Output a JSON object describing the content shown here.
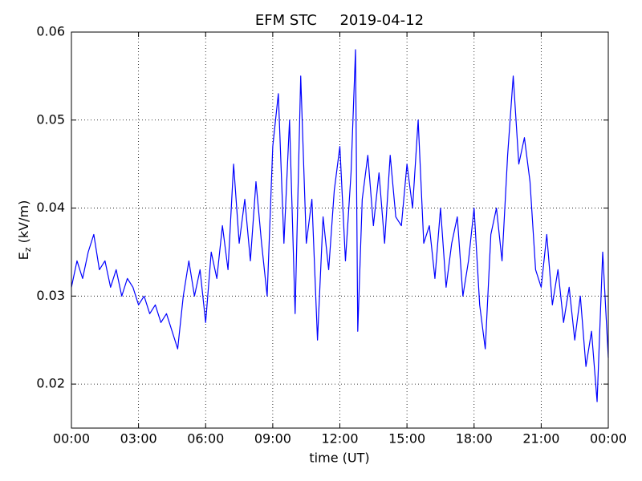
{
  "chart_data": {
    "type": "line",
    "title": "EFM STC     2019-04-12",
    "xlabel": "time (UT)",
    "ylabel": {
      "main": "E",
      "sub": "z",
      "unit": " (kV/m)"
    },
    "x": [
      0,
      0.25,
      0.5,
      0.75,
      1,
      1.25,
      1.5,
      1.75,
      2,
      2.25,
      2.5,
      2.75,
      3,
      3.25,
      3.5,
      3.75,
      4,
      4.25,
      4.5,
      4.75,
      5,
      5.25,
      5.5,
      5.75,
      6,
      6.25,
      6.5,
      6.75,
      7,
      7.25,
      7.5,
      7.75,
      8,
      8.25,
      8.5,
      8.75,
      9,
      9.25,
      9.5,
      9.75,
      10,
      10.25,
      10.5,
      10.75,
      11,
      11.25,
      11.5,
      11.75,
      12,
      12.25,
      12.5,
      12.7,
      12.8,
      13,
      13.25,
      13.5,
      13.75,
      14,
      14.25,
      14.5,
      14.75,
      15,
      15.25,
      15.5,
      15.75,
      16,
      16.25,
      16.5,
      16.75,
      17,
      17.25,
      17.5,
      17.75,
      18,
      18.25,
      18.5,
      18.75,
      19,
      19.25,
      19.5,
      19.75,
      20,
      20.25,
      20.5,
      20.75,
      21,
      21.25,
      21.5,
      21.75,
      22,
      22.25,
      22.5,
      22.75,
      23,
      23.25,
      23.5,
      23.75,
      24
    ],
    "series": [
      {
        "color": "#0000ff",
        "values": [
          0.031,
          0.034,
          0.032,
          0.035,
          0.037,
          0.033,
          0.034,
          0.031,
          0.033,
          0.03,
          0.032,
          0.031,
          0.029,
          0.03,
          0.028,
          0.029,
          0.027,
          0.028,
          0.026,
          0.024,
          0.03,
          0.034,
          0.03,
          0.033,
          0.027,
          0.035,
          0.032,
          0.038,
          0.033,
          0.045,
          0.036,
          0.041,
          0.034,
          0.043,
          0.036,
          0.03,
          0.047,
          0.053,
          0.036,
          0.05,
          0.028,
          0.055,
          0.036,
          0.041,
          0.025,
          0.039,
          0.033,
          0.042,
          0.047,
          0.034,
          0.044,
          0.058,
          0.026,
          0.041,
          0.046,
          0.038,
          0.044,
          0.036,
          0.046,
          0.039,
          0.038,
          0.045,
          0.04,
          0.05,
          0.036,
          0.038,
          0.032,
          0.04,
          0.031,
          0.036,
          0.039,
          0.03,
          0.034,
          0.04,
          0.029,
          0.024,
          0.037,
          0.04,
          0.034,
          0.046,
          0.055,
          0.045,
          0.048,
          0.043,
          0.033,
          0.031,
          0.037,
          0.029,
          0.033,
          0.027,
          0.031,
          0.025,
          0.03,
          0.022,
          0.026,
          0.018,
          0.035,
          0.023
        ]
      }
    ],
    "xlim": [
      0,
      24
    ],
    "xticks": [
      {
        "value": 0,
        "label": "00:00"
      },
      {
        "value": 3,
        "label": "03:00"
      },
      {
        "value": 6,
        "label": "06:00"
      },
      {
        "value": 9,
        "label": "09:00"
      },
      {
        "value": 12,
        "label": "12:00"
      },
      {
        "value": 15,
        "label": "15:00"
      },
      {
        "value": 18,
        "label": "18:00"
      },
      {
        "value": 21,
        "label": "21:00"
      },
      {
        "value": 24,
        "label": "00:00"
      }
    ],
    "ylim": [
      0.015,
      0.06
    ],
    "yticks": [
      0.02,
      0.03,
      0.04,
      0.05,
      0.06
    ],
    "grid": true
  }
}
